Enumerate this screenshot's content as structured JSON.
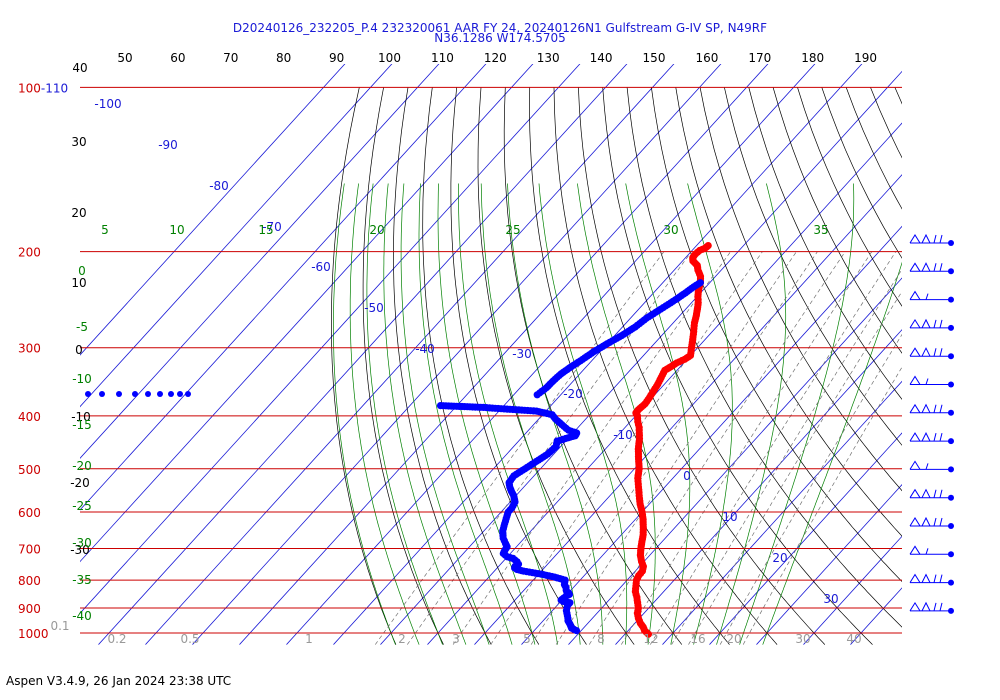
{
  "header": {
    "line1": "D20240126_232205_P.4 232320061 AAR FY 24, 20240126N1 Gulfstream G-IV SP, N49RF",
    "line2": "N36.1286 W174.5705"
  },
  "footer": "Aspen V3.4.9, 26 Jan 2024  23:38 UTC",
  "colors": {
    "temperature": "#ff0000",
    "dewpoint": "#0000ff",
    "isobar": "#cc0000",
    "isotherm": "#1a1ad6",
    "dry_adiabat": "#000000",
    "moist_adiabat": "#008000",
    "mixing_ratio": "#707070",
    "header_text": "#1a1ad6"
  },
  "chart_data": {
    "type": "scatter",
    "subtype": "skew-T log-p sounding",
    "title": "D20240126_232205_P.4 232320061 AAR FY 24, 20240126N1 Gulfstream G-IV SP, N49RF",
    "subtitle": "N36.1286 W174.5705",
    "pressure_labels": [
      "100-110",
      "200",
      "300",
      "400",
      "500",
      "600",
      "700",
      "800",
      "900",
      "1000"
    ],
    "pressure_levels": [
      100,
      200,
      300,
      400,
      500,
      600,
      700,
      800,
      900,
      1000
    ],
    "isotherm_labels_top": [
      "40",
      "50",
      "60",
      "70",
      "80",
      "90",
      "100",
      "110",
      "120",
      "130",
      "140",
      "150",
      "160",
      "170",
      "180",
      "190"
    ],
    "isotherm_labels_diag": [
      "-100",
      "-90",
      "-80",
      "-70",
      "-60",
      "-50",
      "-40",
      "-30",
      "-20",
      "-10",
      "0",
      "10",
      "20",
      "30"
    ],
    "dry_adiabat_labels": [
      "40",
      "30",
      "20",
      "10",
      "0",
      "-10",
      "-20",
      "-30"
    ],
    "moist_adiabat_labels": [
      "5",
      "10",
      "15",
      "20",
      "25",
      "30",
      "35"
    ],
    "moist_adiabat_left_labels": [
      "0",
      "-5",
      "-10",
      "-15",
      "-20",
      "-25",
      "-30",
      "-35",
      "-40"
    ],
    "mixing_ratio_labels": [
      "0.1",
      "0.2",
      "0.5",
      "1",
      "2",
      "3",
      "5",
      "8",
      "12",
      "16",
      "20",
      "30",
      "40"
    ],
    "grid": true,
    "series": [
      {
        "key": "temperature",
        "points": [
          [
            1005,
            15.0
          ],
          [
            990,
            13.5
          ],
          [
            975,
            12.5
          ],
          [
            960,
            11.2
          ],
          [
            940,
            9.8
          ],
          [
            920,
            8.6
          ],
          [
            900,
            7.8
          ],
          [
            880,
            6.6
          ],
          [
            860,
            5.4
          ],
          [
            840,
            4.0
          ],
          [
            820,
            3.0
          ],
          [
            800,
            2.0
          ],
          [
            785,
            1.6
          ],
          [
            770,
            1.5
          ],
          [
            755,
            0.8
          ],
          [
            740,
            -0.5
          ],
          [
            720,
            -2.0
          ],
          [
            700,
            -3.2
          ],
          [
            680,
            -4.3
          ],
          [
            660,
            -5.4
          ],
          [
            640,
            -6.8
          ],
          [
            620,
            -8.3
          ],
          [
            600,
            -10.0
          ],
          [
            580,
            -12.0
          ],
          [
            560,
            -13.8
          ],
          [
            540,
            -15.6
          ],
          [
            520,
            -17.5
          ],
          [
            500,
            -19.0
          ],
          [
            480,
            -21.0
          ],
          [
            460,
            -23.0
          ],
          [
            440,
            -24.8
          ],
          [
            420,
            -27.0
          ],
          [
            410,
            -28.4
          ],
          [
            400,
            -29.6
          ],
          [
            395,
            -30.5
          ],
          [
            390,
            -30.6
          ],
          [
            380,
            -30.3
          ],
          [
            370,
            -30.6
          ],
          [
            360,
            -31.0
          ],
          [
            350,
            -31.4
          ],
          [
            340,
            -32.0
          ],
          [
            330,
            -32.6
          ],
          [
            325,
            -32.0
          ],
          [
            320,
            -31.5
          ],
          [
            315,
            -30.5
          ],
          [
            310,
            -30.0
          ],
          [
            300,
            -31.3
          ],
          [
            290,
            -32.6
          ],
          [
            280,
            -34.0
          ],
          [
            270,
            -35.5
          ],
          [
            262,
            -36.5
          ],
          [
            255,
            -37.5
          ],
          [
            248,
            -38.6
          ],
          [
            242,
            -39.8
          ],
          [
            235,
            -41.0
          ],
          [
            228,
            -42.0
          ],
          [
            222,
            -43.2
          ],
          [
            216,
            -45.0
          ],
          [
            212,
            -46.0
          ],
          [
            208,
            -47.8
          ],
          [
            205,
            -48.5
          ],
          [
            202,
            -48.6
          ],
          [
            199,
            -48.4
          ],
          [
            197,
            -47.7
          ],
          [
            195,
            -47.5
          ]
        ]
      },
      {
        "key": "dewpoint",
        "points": [
          [
            990,
            -1.0
          ],
          [
            980,
            -2.5
          ],
          [
            965,
            -3.5
          ],
          [
            950,
            -4.7
          ],
          [
            940,
            -5.2
          ],
          [
            930,
            -5.8
          ],
          [
            920,
            -6.4
          ],
          [
            910,
            -7.0
          ],
          [
            900,
            -7.4
          ],
          [
            890,
            -7.8
          ],
          [
            880,
            -7.8
          ],
          [
            875,
            -9.5
          ],
          [
            870,
            -10.2
          ],
          [
            862,
            -10.0
          ],
          [
            855,
            -9.9
          ],
          [
            850,
            -9.5
          ],
          [
            845,
            -9.9
          ],
          [
            840,
            -10.6
          ],
          [
            835,
            -11.0
          ],
          [
            825,
            -11.6
          ],
          [
            815,
            -12.5
          ],
          [
            800,
            -13.2
          ],
          [
            790,
            -16.0
          ],
          [
            780,
            -19.5
          ],
          [
            770,
            -23.8
          ],
          [
            765,
            -25.5
          ],
          [
            760,
            -26.3
          ],
          [
            755,
            -26.5
          ],
          [
            748,
            -26.2
          ],
          [
            740,
            -27.0
          ],
          [
            730,
            -28.5
          ],
          [
            725,
            -30.0
          ],
          [
            715,
            -31.5
          ],
          [
            705,
            -31.8
          ],
          [
            695,
            -32.0
          ],
          [
            685,
            -33.0
          ],
          [
            670,
            -34.5
          ],
          [
            650,
            -36.0
          ],
          [
            630,
            -37.0
          ],
          [
            610,
            -38.0
          ],
          [
            600,
            -38.5
          ],
          [
            590,
            -38.5
          ],
          [
            575,
            -39.0
          ],
          [
            560,
            -40.5
          ],
          [
            550,
            -41.8
          ],
          [
            540,
            -43.0
          ],
          [
            530,
            -44.0
          ],
          [
            515,
            -44.3
          ],
          [
            500,
            -43.3
          ],
          [
            485,
            -42.3
          ],
          [
            470,
            -41.3
          ],
          [
            455,
            -41.0
          ],
          [
            445,
            -41.8
          ],
          [
            440,
            -40.5
          ],
          [
            435,
            -39.0
          ],
          [
            430,
            -39.2
          ],
          [
            425,
            -41.5
          ],
          [
            415,
            -44.0
          ],
          [
            405,
            -46.5
          ],
          [
            398,
            -48.0
          ],
          [
            392,
            -52.0
          ],
          [
            390,
            -56.0
          ],
          [
            388,
            -60.0
          ],
          [
            386,
            -64.0
          ],
          [
            385,
            -67.0
          ],
          [
            384,
            -70.5
          ],
          [
            383,
            -73.5
          ]
        ]
      },
      {
        "key": "dewpoint_upper",
        "points": [
          [
            366,
            -55.0
          ],
          [
            355,
            -54.4
          ],
          [
            345,
            -54.3
          ],
          [
            335,
            -54.0
          ],
          [
            325,
            -53.2
          ],
          [
            315,
            -52.2
          ],
          [
            305,
            -51.3
          ],
          [
            295,
            -50.0
          ],
          [
            285,
            -48.5
          ],
          [
            275,
            -47.3
          ],
          [
            265,
            -46.6
          ],
          [
            255,
            -45.3
          ],
          [
            245,
            -44.0
          ],
          [
            238,
            -43.2
          ],
          [
            232,
            -42.6
          ],
          [
            228,
            -42.0
          ]
        ]
      }
    ],
    "wind_barbs": {
      "pressure_levels": [
        200,
        250,
        300,
        350,
        400,
        450,
        500,
        550,
        600,
        650,
        700,
        750,
        800,
        850
      ],
      "count": 14
    }
  }
}
